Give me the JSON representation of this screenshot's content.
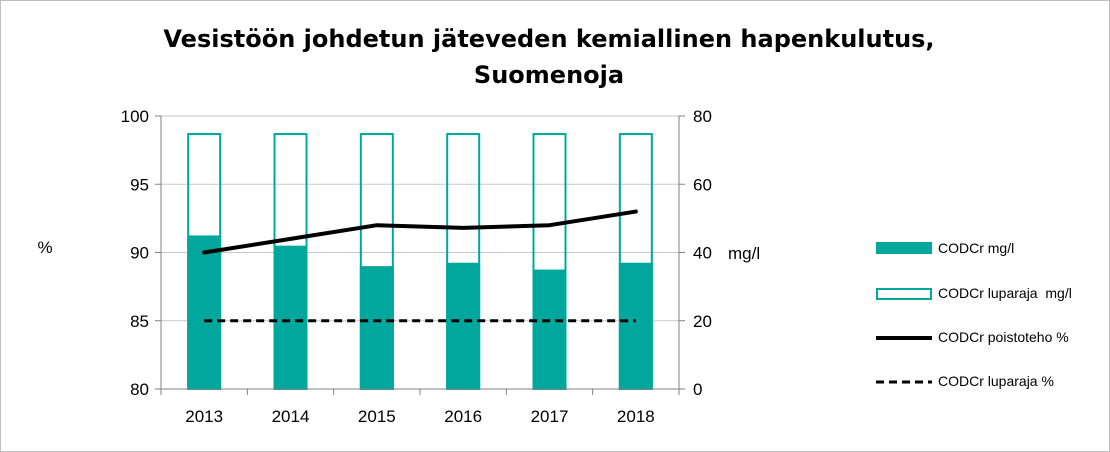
{
  "chart_data": {
    "type": "bar",
    "title_line1": "Vesistöön johdetun jäteveden kemiallinen hapenkulutus,",
    "title_line2": "Suomenoja",
    "categories": [
      "2013",
      "2014",
      "2015",
      "2016",
      "2017",
      "2018"
    ],
    "y_left": {
      "label": "%",
      "min": 80,
      "max": 100,
      "ticks": [
        "100",
        "95",
        "90",
        "85",
        "80"
      ]
    },
    "y_right": {
      "label": "mg/l",
      "min": 0,
      "max": 80,
      "ticks": [
        "80",
        "60",
        "40",
        "20",
        "0"
      ]
    },
    "series": [
      {
        "name": "CODCr mg/l",
        "type": "bar",
        "axis": "right",
        "values": [
          45,
          42,
          36,
          37,
          35,
          37
        ]
      },
      {
        "name": "CODCr luparaja  mg/l",
        "type": "bar-outline",
        "axis": "right",
        "values": [
          75,
          75,
          75,
          75,
          75,
          75
        ]
      },
      {
        "name": "CODCr poistoteho %",
        "type": "line",
        "axis": "left",
        "values": [
          90.0,
          91.0,
          92.0,
          91.8,
          92.0,
          93.0
        ]
      },
      {
        "name": "CODCr luparaja %",
        "type": "line-dashed",
        "axis": "left",
        "values": [
          85,
          85,
          85,
          85,
          85,
          85
        ]
      }
    ],
    "colors": {
      "teal": "#00a79d",
      "line": "#000000",
      "grid": "#c8c8c8"
    },
    "legend_position": "right"
  }
}
